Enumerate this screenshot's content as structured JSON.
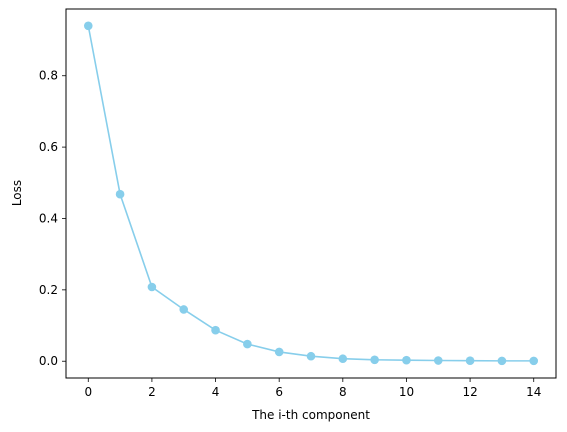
{
  "chart_data": {
    "type": "line",
    "title": "",
    "xlabel": "The i-th component",
    "ylabel": "Loss",
    "x": [
      0,
      1,
      2,
      3,
      4,
      5,
      6,
      7,
      8,
      9,
      10,
      11,
      12,
      13,
      14
    ],
    "series": [
      {
        "values": [
          0.94,
          0.468,
          0.208,
          0.145,
          0.087,
          0.048,
          0.026,
          0.014,
          0.007,
          0.004,
          0.003,
          0.002,
          0.0015,
          0.001,
          0.001
        ],
        "color": "#87ceeb",
        "marker": "circle"
      }
    ],
    "xlim": [
      -0.7,
      14.7
    ],
    "ylim": [
      -0.047,
      0.987
    ],
    "xticks": [
      0,
      2,
      4,
      6,
      8,
      10,
      12,
      14
    ],
    "yticks": [
      0.0,
      0.2,
      0.4,
      0.6,
      0.8
    ],
    "xtick_labels": [
      "0",
      "2",
      "4",
      "6",
      "8",
      "10",
      "12",
      "14"
    ],
    "ytick_labels": [
      "0.0",
      "0.2",
      "0.4",
      "0.6",
      "0.8"
    ],
    "grid": false,
    "legend": false
  }
}
